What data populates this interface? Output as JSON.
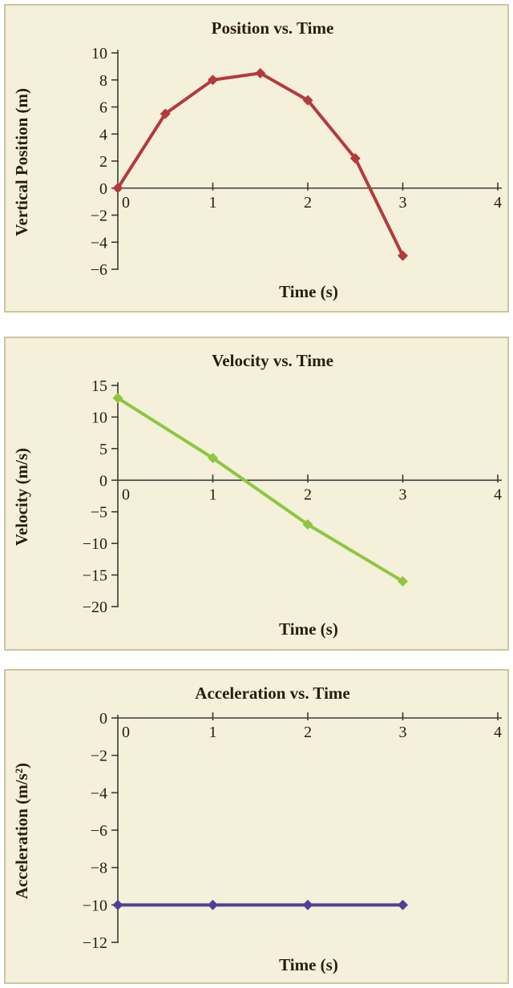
{
  "chart_data": [
    {
      "type": "line",
      "title": "Position vs. Time",
      "xlabel": "Time (s)",
      "ylabel": "Vertical Position (m)",
      "color": "#b5393d",
      "xlim": [
        0,
        4
      ],
      "ylim": [
        -6,
        10
      ],
      "xticks": [
        0,
        1,
        2,
        3,
        4
      ],
      "yticks": [
        10,
        8,
        6,
        4,
        2,
        0,
        -2,
        -4,
        -6
      ],
      "x": [
        0,
        0.5,
        1,
        1.5,
        2,
        2.5,
        3
      ],
      "y": [
        0,
        5.5,
        8,
        8.5,
        6.5,
        2.2,
        -5
      ],
      "grid": false,
      "legend": "none"
    },
    {
      "type": "line",
      "title": "Velocity vs. Time",
      "xlabel": "Time (s)",
      "ylabel": "Velocity (m/s)",
      "color": "#8fc63f",
      "xlim": [
        0,
        4
      ],
      "ylim": [
        -20,
        15
      ],
      "xticks": [
        0,
        1,
        2,
        3,
        4
      ],
      "yticks": [
        15,
        10,
        5,
        0,
        -5,
        -10,
        -15,
        -20
      ],
      "x": [
        0,
        1,
        2,
        3
      ],
      "y": [
        13,
        3.5,
        -7,
        -16
      ],
      "grid": false,
      "legend": "none"
    },
    {
      "type": "line",
      "title": "Acceleration vs. Time",
      "xlabel": "Time (s)",
      "ylabel": "Acceleration (m/s²)",
      "color": "#4f3f99",
      "xlim": [
        0,
        4
      ],
      "ylim": [
        -12,
        0
      ],
      "xticks": [
        0,
        1,
        2,
        3,
        4
      ],
      "yticks": [
        0,
        -2,
        -4,
        -6,
        -8,
        -10,
        -12
      ],
      "x": [
        0,
        1,
        2,
        3
      ],
      "y": [
        -10,
        -10,
        -10,
        -10
      ],
      "grid": false,
      "legend": "none"
    }
  ]
}
